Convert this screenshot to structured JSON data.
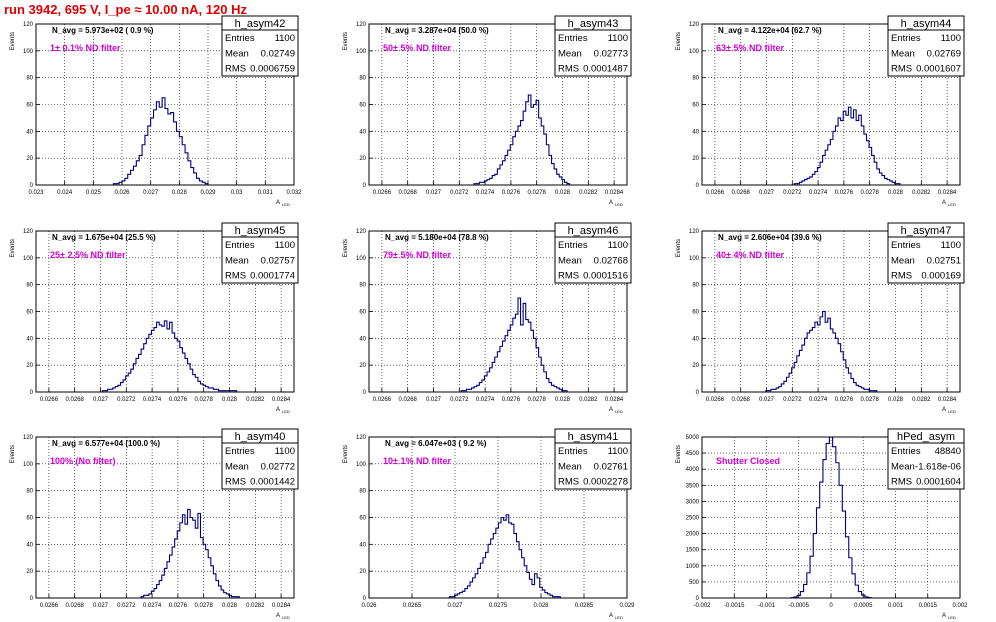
{
  "run_title": "run 3942,   695 V, I_pe ≈ 10.00 nA, 120 Hz",
  "colors": {
    "title": "#e00000",
    "histogram": "#000080",
    "filter_label": "#d400d4",
    "frame": "#000000",
    "grid": "#000000"
  },
  "chart_data": [
    {
      "type": "histogram",
      "hist_name": "h_asym42",
      "ylabel": "Events",
      "xlabel": "A",
      "xlabel_sub": "LED",
      "navg": "N_avg = 5.973e+02 ( 0.9 %)",
      "filter": "1± 0.1% ND filter",
      "stats": {
        "entries": "1100",
        "mean": "0.02749",
        "rms": "0.0006759"
      },
      "xlim": [
        0.023,
        0.032
      ],
      "ylim": [
        0,
        120
      ],
      "xticks": [
        "0.023",
        "0.024",
        "0.025",
        "0.026",
        "0.027",
        "0.028",
        "0.029",
        "0.03",
        "0.031",
        "0.032"
      ],
      "yticks": [
        "0",
        "20",
        "40",
        "60",
        "80",
        "100",
        "120"
      ],
      "grid": true,
      "bins_x": [
        0.02575,
        0.02585,
        0.02595,
        0.02605,
        0.02615,
        0.02625,
        0.02635,
        0.02645,
        0.02655,
        0.02665,
        0.02675,
        0.02685,
        0.02695,
        0.02705,
        0.02715,
        0.02725,
        0.02735,
        0.02745,
        0.02755,
        0.02765,
        0.02775,
        0.02785,
        0.02795,
        0.02805,
        0.02815,
        0.02825,
        0.02835,
        0.02845,
        0.02855,
        0.02865,
        0.02875,
        0.02885,
        0.02895
      ],
      "bins_y": [
        1,
        1,
        2,
        3,
        5,
        8,
        11,
        14,
        18,
        22,
        30,
        37,
        44,
        50,
        56,
        62,
        58,
        65,
        57,
        53,
        54,
        47,
        40,
        36,
        30,
        24,
        18,
        13,
        9,
        5,
        3,
        2,
        1
      ]
    },
    {
      "type": "histogram",
      "hist_name": "h_asym43",
      "ylabel": "Events",
      "xlabel": "A",
      "xlabel_sub": "LED",
      "navg": "N_avg = 3.287e+04 (50.0 %)",
      "filter": "50± 5% ND filter",
      "stats": {
        "entries": "1100",
        "mean": "0.02773",
        "rms": "0.0001487"
      },
      "xlim": [
        0.0265,
        0.0285
      ],
      "ylim": [
        0,
        120
      ],
      "xticks": [
        "0.0266",
        "0.0268",
        "0.027",
        "0.0272",
        "0.0274",
        "0.0276",
        "0.0278",
        "0.028",
        "0.0282",
        "0.0284"
      ],
      "yticks": [
        "0",
        "20",
        "40",
        "60",
        "80",
        "100",
        "120"
      ],
      "grid": true,
      "bins_x": [
        0.027325,
        0.027345,
        0.027365,
        0.027385,
        0.027405,
        0.027425,
        0.027445,
        0.027465,
        0.027485,
        0.027505,
        0.027525,
        0.027545,
        0.027565,
        0.027585,
        0.027605,
        0.027625,
        0.027645,
        0.027665,
        0.027685,
        0.027705,
        0.027725,
        0.027745,
        0.027765,
        0.027785,
        0.027805,
        0.027825,
        0.027845,
        0.027865,
        0.027885,
        0.027905,
        0.027925,
        0.027945,
        0.027965,
        0.027985,
        0.028005,
        0.028025,
        0.028045
      ],
      "bins_y": [
        1,
        1,
        2,
        2,
        3,
        4,
        5,
        7,
        8,
        12,
        15,
        18,
        22,
        26,
        30,
        36,
        40,
        44,
        48,
        55,
        62,
        67,
        58,
        60,
        63,
        50,
        44,
        38,
        30,
        22,
        16,
        12,
        8,
        6,
        4,
        2,
        1
      ]
    },
    {
      "type": "histogram",
      "hist_name": "h_asym44",
      "ylabel": "Events",
      "xlabel": "A",
      "xlabel_sub": "LED",
      "navg": "N_avg = 4.122e+04 (62.7 %)",
      "filter": "63± 5% ND filter",
      "stats": {
        "entries": "1100",
        "mean": "0.02769",
        "rms": "0.0001607"
      },
      "xlim": [
        0.0265,
        0.0285
      ],
      "ylim": [
        0,
        120
      ],
      "xticks": [
        "0.0266",
        "0.0268",
        "0.027",
        "0.0272",
        "0.0274",
        "0.0276",
        "0.0278",
        "0.028",
        "0.0282",
        "0.0284"
      ],
      "yticks": [
        "0",
        "20",
        "40",
        "60",
        "80",
        "100",
        "120"
      ],
      "grid": true,
      "bins_x": [
        0.027225,
        0.027245,
        0.027265,
        0.027285,
        0.027305,
        0.027325,
        0.027345,
        0.027365,
        0.027385,
        0.027405,
        0.027425,
        0.027445,
        0.027465,
        0.027485,
        0.027505,
        0.027525,
        0.027545,
        0.027565,
        0.027585,
        0.027605,
        0.027625,
        0.027645,
        0.027665,
        0.027685,
        0.027705,
        0.027725,
        0.027745,
        0.027765,
        0.027785,
        0.027805,
        0.027825,
        0.027845,
        0.027865,
        0.027885,
        0.027905,
        0.027925,
        0.027945,
        0.027965,
        0.027985,
        0.028005,
        0.028025
      ],
      "bins_y": [
        1,
        1,
        2,
        3,
        4,
        5,
        6,
        8,
        10,
        13,
        17,
        22,
        26,
        30,
        34,
        40,
        44,
        50,
        48,
        55,
        52,
        58,
        50,
        56,
        48,
        52,
        44,
        38,
        33,
        28,
        22,
        17,
        12,
        9,
        7,
        5,
        4,
        3,
        2,
        1,
        1
      ]
    },
    {
      "type": "histogram",
      "hist_name": "h_asym45",
      "ylabel": "Events",
      "xlabel": "A",
      "xlabel_sub": "LED",
      "navg": "N_avg = 1.675e+04 (25.5 %)",
      "filter": "25± 2.5% ND filter",
      "stats": {
        "entries": "1100",
        "mean": "0.02757",
        "rms": "0.0001774"
      },
      "xlim": [
        0.0265,
        0.0285
      ],
      "ylim": [
        0,
        120
      ],
      "xticks": [
        "0.0266",
        "0.0268",
        "0.027",
        "0.0272",
        "0.0274",
        "0.0276",
        "0.0278",
        "0.028",
        "0.0282",
        "0.0284"
      ],
      "yticks": [
        "0",
        "20",
        "40",
        "60",
        "80",
        "100",
        "120"
      ],
      "grid": true,
      "bins_x": [
        0.027025,
        0.027045,
        0.027065,
        0.027085,
        0.027105,
        0.027125,
        0.027145,
        0.027165,
        0.027185,
        0.027205,
        0.027225,
        0.027245,
        0.027265,
        0.027285,
        0.027305,
        0.027325,
        0.027345,
        0.027365,
        0.027385,
        0.027405,
        0.027425,
        0.027445,
        0.027465,
        0.027485,
        0.027505,
        0.027525,
        0.027545,
        0.027565,
        0.027585,
        0.027605,
        0.027625,
        0.027645,
        0.027665,
        0.027685,
        0.027705,
        0.027725,
        0.027745,
        0.027765,
        0.027785,
        0.027805,
        0.027825,
        0.027845,
        0.027865,
        0.027885,
        0.027905,
        0.027925,
        0.027945,
        0.027965,
        0.027985,
        0.028005,
        0.028025,
        0.028045
      ],
      "bins_y": [
        1,
        1,
        2,
        2,
        3,
        4,
        5,
        7,
        9,
        12,
        14,
        17,
        21,
        25,
        28,
        32,
        36,
        40,
        43,
        46,
        48,
        52,
        50,
        49,
        53,
        47,
        52,
        44,
        40,
        38,
        33,
        29,
        25,
        21,
        17,
        13,
        11,
        8,
        6,
        5,
        4,
        3,
        3,
        2,
        2,
        1,
        1,
        1,
        1,
        1,
        1,
        1
      ]
    },
    {
      "type": "histogram",
      "hist_name": "h_asym46",
      "ylabel": "Events",
      "xlabel": "A",
      "xlabel_sub": "LED",
      "navg": "N_avg = 5.180e+04 (78.8 %)",
      "filter": "79± 5% ND filter",
      "stats": {
        "entries": "1100",
        "mean": "0.02768",
        "rms": "0.0001516"
      },
      "xlim": [
        0.0265,
        0.0285
      ],
      "ylim": [
        0,
        120
      ],
      "xticks": [
        "0.0266",
        "0.0268",
        "0.027",
        "0.0272",
        "0.0274",
        "0.0276",
        "0.0278",
        "0.028",
        "0.0282",
        "0.0284"
      ],
      "yticks": [
        "0",
        "20",
        "40",
        "60",
        "80",
        "100",
        "120"
      ],
      "grid": true,
      "bins_x": [
        0.027225,
        0.027245,
        0.027265,
        0.027285,
        0.027305,
        0.027325,
        0.027345,
        0.027365,
        0.027385,
        0.027405,
        0.027425,
        0.027445,
        0.027465,
        0.027485,
        0.027505,
        0.027525,
        0.027545,
        0.027565,
        0.027585,
        0.027605,
        0.027625,
        0.027645,
        0.027665,
        0.027685,
        0.027705,
        0.027725,
        0.027745,
        0.027765,
        0.027785,
        0.027805,
        0.027825,
        0.027845,
        0.027865,
        0.027885,
        0.027905,
        0.027925,
        0.027945,
        0.027965,
        0.027985,
        0.028005,
        0.028025
      ],
      "bins_y": [
        1,
        1,
        2,
        2,
        3,
        4,
        5,
        7,
        9,
        12,
        15,
        18,
        22,
        26,
        30,
        34,
        38,
        42,
        46,
        50,
        55,
        58,
        70,
        50,
        66,
        54,
        52,
        46,
        40,
        33,
        26,
        20,
        15,
        10,
        7,
        5,
        4,
        3,
        2,
        1,
        1
      ]
    },
    {
      "type": "histogram",
      "hist_name": "h_asym47",
      "ylabel": "Events",
      "xlabel": "A",
      "xlabel_sub": "LED",
      "navg": "N_avg = 2.606e+04 (39.6 %)",
      "filter": "40± 4% ND filter",
      "stats": {
        "entries": "1100",
        "mean": "0.02751",
        "rms": "0.000169"
      },
      "xlim": [
        0.0265,
        0.0285
      ],
      "ylim": [
        0,
        120
      ],
      "xticks": [
        "0.0266",
        "0.0268",
        "0.027",
        "0.0272",
        "0.0274",
        "0.0276",
        "0.0278",
        "0.028",
        "0.0282",
        "0.0284"
      ],
      "yticks": [
        "0",
        "20",
        "40",
        "60",
        "80",
        "100",
        "120"
      ],
      "grid": true,
      "bins_x": [
        0.027005,
        0.027025,
        0.027045,
        0.027065,
        0.027085,
        0.027105,
        0.027125,
        0.027145,
        0.027165,
        0.027185,
        0.027205,
        0.027225,
        0.027245,
        0.027265,
        0.027285,
        0.027305,
        0.027325,
        0.027345,
        0.027365,
        0.027385,
        0.027405,
        0.027425,
        0.027445,
        0.027465,
        0.027485,
        0.027505,
        0.027525,
        0.027545,
        0.027565,
        0.027585,
        0.027605,
        0.027625,
        0.027645,
        0.027665,
        0.027685,
        0.027705,
        0.027725,
        0.027745,
        0.027765,
        0.027785,
        0.027805,
        0.027825,
        0.027845
      ],
      "bins_y": [
        1,
        1,
        2,
        2,
        3,
        4,
        6,
        8,
        11,
        14,
        18,
        22,
        27,
        31,
        35,
        40,
        44,
        46,
        48,
        52,
        50,
        56,
        60,
        52,
        55,
        47,
        44,
        40,
        36,
        30,
        24,
        18,
        14,
        10,
        7,
        5,
        4,
        3,
        2,
        2,
        1,
        1,
        1
      ]
    },
    {
      "type": "histogram",
      "hist_name": "h_asym40",
      "ylabel": "Events",
      "xlabel": "A",
      "xlabel_sub": "LED",
      "navg": "N_avg = 6.577e+04 (100.0 %)",
      "filter": "100% (No filter)",
      "stats": {
        "entries": "1100",
        "mean": "0.02772",
        "rms": "0.0001442"
      },
      "xlim": [
        0.0265,
        0.0285
      ],
      "ylim": [
        0,
        120
      ],
      "xticks": [
        "0.0266",
        "0.0268",
        "0.027",
        "0.0272",
        "0.0274",
        "0.0276",
        "0.0278",
        "0.028",
        "0.0282",
        "0.0284"
      ],
      "yticks": [
        "0",
        "20",
        "40",
        "60",
        "80",
        "100",
        "120"
      ],
      "grid": true,
      "bins_x": [
        0.027325,
        0.027345,
        0.027365,
        0.027385,
        0.027405,
        0.027425,
        0.027445,
        0.027465,
        0.027485,
        0.027505,
        0.027525,
        0.027545,
        0.027565,
        0.027585,
        0.027605,
        0.027625,
        0.027645,
        0.027665,
        0.027685,
        0.027705,
        0.027725,
        0.027745,
        0.027765,
        0.027785,
        0.027805,
        0.027825,
        0.027845,
        0.027865,
        0.027885,
        0.027905,
        0.027925,
        0.027945,
        0.027965,
        0.027985,
        0.028005,
        0.028025,
        0.028045,
        0.028065
      ],
      "bins_y": [
        1,
        2,
        2,
        3,
        5,
        7,
        10,
        13,
        17,
        22,
        27,
        32,
        38,
        44,
        50,
        56,
        62,
        55,
        66,
        60,
        58,
        52,
        63,
        45,
        40,
        36,
        30,
        24,
        18,
        13,
        9,
        6,
        4,
        3,
        2,
        1,
        1,
        1
      ]
    },
    {
      "type": "histogram",
      "hist_name": "h_asym41",
      "ylabel": "Events",
      "xlabel": "A",
      "xlabel_sub": "LED",
      "navg": "N_avg = 6.047e+03 ( 9.2 %)",
      "filter": "10± 1% ND filter",
      "stats": {
        "entries": "1100",
        "mean": "0.02761",
        "rms": "0.0002278"
      },
      "xlim": [
        0.026,
        0.029
      ],
      "ylim": [
        0,
        120
      ],
      "xticks": [
        "0.026",
        "0.0265",
        "0.027",
        "0.0275",
        "0.028",
        "0.0285",
        "0.029"
      ],
      "yticks": [
        "0",
        "20",
        "40",
        "60",
        "80",
        "100",
        "120"
      ],
      "grid": true,
      "bins_x": [
        0.02695,
        0.02698,
        0.02701,
        0.02704,
        0.02707,
        0.0271,
        0.02713,
        0.02716,
        0.02719,
        0.02722,
        0.02725,
        0.02728,
        0.02731,
        0.02734,
        0.02737,
        0.0274,
        0.02743,
        0.02746,
        0.02749,
        0.02752,
        0.02755,
        0.02758,
        0.02761,
        0.02764,
        0.02767,
        0.0277,
        0.02773,
        0.02776,
        0.02779,
        0.02782,
        0.02785,
        0.02788,
        0.02791,
        0.02794,
        0.02797,
        0.028,
        0.02803,
        0.02806,
        0.02809,
        0.02812,
        0.02815,
        0.02818,
        0.02821
      ],
      "bins_y": [
        1,
        1,
        2,
        3,
        4,
        5,
        7,
        9,
        12,
        15,
        18,
        22,
        26,
        30,
        34,
        40,
        44,
        48,
        52,
        56,
        60,
        58,
        62,
        56,
        55,
        48,
        42,
        36,
        30,
        24,
        19,
        14,
        10,
        18,
        15,
        8,
        6,
        4,
        3,
        2,
        1,
        1,
        1
      ]
    },
    {
      "type": "histogram",
      "hist_name": "hPed_asym",
      "ylabel": "Events",
      "xlabel": "A",
      "xlabel_sub": "LED",
      "navg": "",
      "filter": "Shutter Closed",
      "stats": {
        "entries": "48840",
        "mean": "-1.618e-06",
        "rms": "0.0001604"
      },
      "xlim": [
        -0.002,
        0.002
      ],
      "ylim": [
        0,
        5000
      ],
      "xticks": [
        "-0.002",
        "-0.0015",
        "-0.001",
        "-0.0005",
        "0",
        "0.0005",
        "0.001",
        "0.0015",
        "0.002"
      ],
      "yticks": [
        "0",
        "500",
        "1000",
        "1500",
        "2000",
        "2500",
        "3000",
        "3500",
        "4000",
        "4500",
        "5000"
      ],
      "grid": true,
      "bins_x": [
        -0.0006,
        -0.00055,
        -0.0005,
        -0.00045,
        -0.0004,
        -0.00035,
        -0.0003,
        -0.00025,
        -0.0002,
        -0.00015,
        -0.0001,
        -5e-05,
        0,
        5e-05,
        0.0001,
        0.00015,
        0.0002,
        0.00025,
        0.0003,
        0.00035,
        0.0004,
        0.00045,
        0.0005,
        0.00055,
        0.0006
      ],
      "bins_y": [
        10,
        30,
        80,
        200,
        420,
        780,
        1300,
        2000,
        2800,
        3600,
        4300,
        4800,
        5000,
        4700,
        4200,
        3500,
        2700,
        1900,
        1250,
        750,
        400,
        200,
        90,
        35,
        10
      ]
    }
  ]
}
